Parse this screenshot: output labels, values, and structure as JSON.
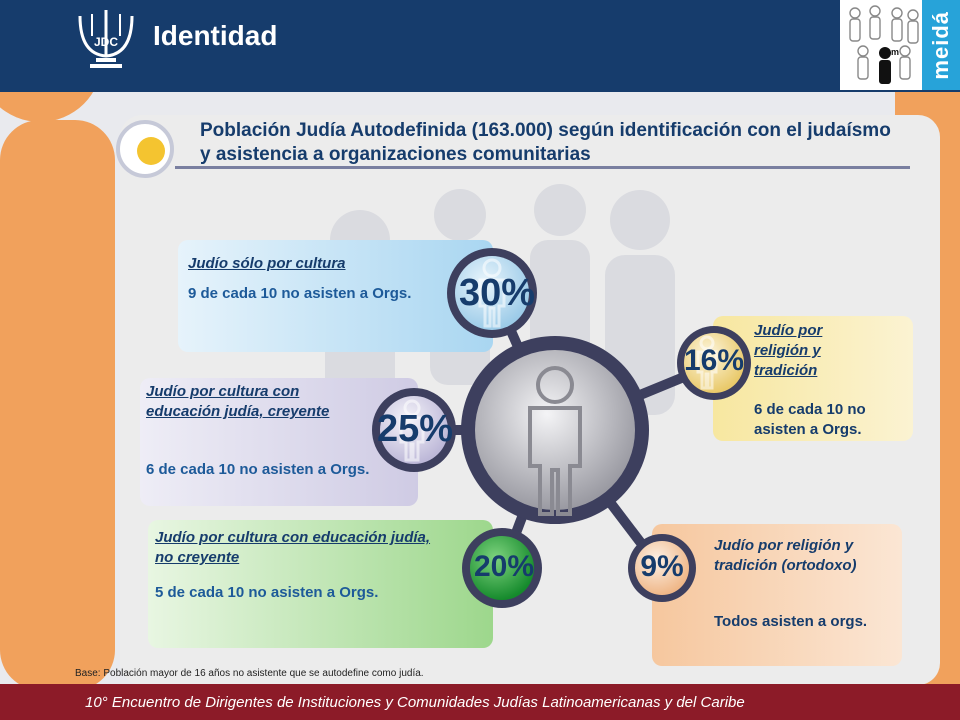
{
  "header": {
    "title": "Identidad",
    "logo_text": "JDC",
    "brand_text": "meidá",
    "brand_icon_text": "m"
  },
  "subtitle": "Población Judía Autodefinida (163.000) según identificación con el judaísmo y asistencia a organizaciones comunitarias",
  "segments": [
    {
      "label": "Judío sólo por cultura",
      "description": "9 de cada 10 no asisten a Orgs.",
      "percent": "30%",
      "value": 30,
      "color": "#a9d6f1"
    },
    {
      "label": "Judío por religión y tradición",
      "description": "6 de cada 10 no asisten a Orgs.",
      "percent": "16%",
      "value": 16,
      "color": "#f7e7a0"
    },
    {
      "label": "Judío por cultura con educación judía, creyente",
      "description": "6 de cada 10 no asisten a Orgs.",
      "percent": "25%",
      "value": 25,
      "color": "#cfcbe4"
    },
    {
      "label": "Judío por cultura con educación judía, no creyente",
      "description": "5 de cada 10 no asisten a Orgs.",
      "percent": "20%",
      "value": 20,
      "color": "#9dd78c"
    },
    {
      "label": "Judío por religión y tradición (ortodoxo)",
      "description": "Todos asisten a orgs.",
      "percent": "9%",
      "value": 9,
      "color": "#f6c79e"
    }
  ],
  "base_note": "Base: Población mayor de 16 años no asistente que se autodefine como judía.",
  "footer": "10° Encuentro de Dirigentes de Instituciones y Comunidades Judías Latinoamericanas y del Caribe",
  "colors": {
    "header": "#163c6c",
    "footer": "#8c1b28",
    "accent_orange": "#f1a15c",
    "meida_blue": "#27a3d9",
    "text_navy": "#163c6c",
    "text_blue": "#1d5a99"
  }
}
